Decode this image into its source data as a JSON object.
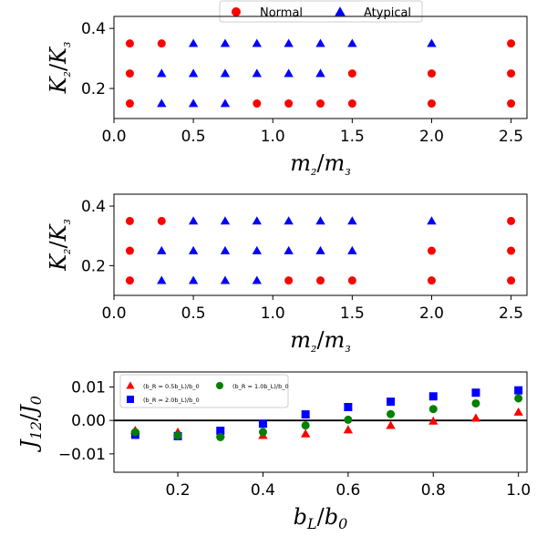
{
  "figure_legend": {
    "entries": [
      {
        "label": "Normal",
        "marker": "circle",
        "color": "#ff0000"
      },
      {
        "label": "Atypical",
        "marker": "triangle",
        "color": "#0000ff"
      }
    ]
  },
  "chart_data": [
    {
      "type": "scatter",
      "panel": "top",
      "xlabel": "m₂/m₃",
      "ylabel": "K₂/K₃",
      "xlim": [
        0.0,
        2.6
      ],
      "ylim": [
        0.1,
        0.44
      ],
      "xticks": [
        0.0,
        0.5,
        1.0,
        1.5,
        2.0,
        2.5
      ],
      "xtick_labels": [
        "0.0",
        "0.5",
        "1.0",
        "1.5",
        "2.0",
        "2.5"
      ],
      "yticks": [
        0.2,
        0.4
      ],
      "ytick_labels": [
        "0.2",
        "0.4"
      ],
      "series": [
        {
          "name": "Normal",
          "marker": "circle",
          "color": "#ff0000",
          "points": [
            [
              0.1,
              0.35
            ],
            [
              0.3,
              0.35
            ],
            [
              2.5,
              0.35
            ],
            [
              0.1,
              0.25
            ],
            [
              1.5,
              0.25
            ],
            [
              2.0,
              0.25
            ],
            [
              2.5,
              0.25
            ],
            [
              0.1,
              0.15
            ],
            [
              0.9,
              0.15
            ],
            [
              1.1,
              0.15
            ],
            [
              1.3,
              0.15
            ],
            [
              1.5,
              0.15
            ],
            [
              2.0,
              0.15
            ],
            [
              2.5,
              0.15
            ]
          ]
        },
        {
          "name": "Atypical",
          "marker": "triangle",
          "color": "#0000ff",
          "points": [
            [
              0.5,
              0.35
            ],
            [
              0.7,
              0.35
            ],
            [
              0.9,
              0.35
            ],
            [
              1.1,
              0.35
            ],
            [
              1.3,
              0.35
            ],
            [
              1.5,
              0.35
            ],
            [
              2.0,
              0.35
            ],
            [
              0.3,
              0.25
            ],
            [
              0.5,
              0.25
            ],
            [
              0.7,
              0.25
            ],
            [
              0.9,
              0.25
            ],
            [
              1.1,
              0.25
            ],
            [
              1.3,
              0.25
            ],
            [
              0.3,
              0.15
            ],
            [
              0.5,
              0.15
            ],
            [
              0.7,
              0.15
            ]
          ]
        }
      ]
    },
    {
      "type": "scatter",
      "panel": "middle",
      "xlabel": "m₂/m₃",
      "ylabel": "K₂/K₃",
      "xlim": [
        0.0,
        2.6
      ],
      "ylim": [
        0.1,
        0.44
      ],
      "xticks": [
        0.0,
        0.5,
        1.0,
        1.5,
        2.0,
        2.5
      ],
      "xtick_labels": [
        "0.0",
        "0.5",
        "1.0",
        "1.5",
        "2.0",
        "2.5"
      ],
      "yticks": [
        0.2,
        0.4
      ],
      "ytick_labels": [
        "0.2",
        "0.4"
      ],
      "series": [
        {
          "name": "Normal",
          "marker": "circle",
          "color": "#ff0000",
          "points": [
            [
              0.1,
              0.35
            ],
            [
              0.3,
              0.35
            ],
            [
              2.5,
              0.35
            ],
            [
              0.1,
              0.25
            ],
            [
              2.0,
              0.25
            ],
            [
              2.5,
              0.25
            ],
            [
              0.1,
              0.15
            ],
            [
              1.1,
              0.15
            ],
            [
              1.3,
              0.15
            ],
            [
              1.5,
              0.15
            ],
            [
              2.0,
              0.15
            ],
            [
              2.5,
              0.15
            ]
          ]
        },
        {
          "name": "Atypical",
          "marker": "triangle",
          "color": "#0000ff",
          "points": [
            [
              0.5,
              0.35
            ],
            [
              0.7,
              0.35
            ],
            [
              0.9,
              0.35
            ],
            [
              1.1,
              0.35
            ],
            [
              1.3,
              0.35
            ],
            [
              1.5,
              0.35
            ],
            [
              2.0,
              0.35
            ],
            [
              0.3,
              0.25
            ],
            [
              0.5,
              0.25
            ],
            [
              0.7,
              0.25
            ],
            [
              0.9,
              0.25
            ],
            [
              1.1,
              0.25
            ],
            [
              1.3,
              0.25
            ],
            [
              1.5,
              0.25
            ],
            [
              0.3,
              0.15
            ],
            [
              0.5,
              0.15
            ],
            [
              0.7,
              0.15
            ],
            [
              0.9,
              0.15
            ]
          ]
        }
      ]
    },
    {
      "type": "scatter",
      "panel": "bottom",
      "xlabel": "b_L/b_0",
      "ylabel": "J_12/J_0",
      "xlim": [
        0.05,
        1.02
      ],
      "ylim": [
        -0.0155,
        0.0145
      ],
      "xticks": [
        0.2,
        0.4,
        0.6,
        0.8,
        1.0
      ],
      "xtick_labels": [
        "0.2",
        "0.4",
        "0.6",
        "0.8",
        "1.0"
      ],
      "yticks": [
        -0.01,
        0.0,
        0.01
      ],
      "ytick_labels": [
        "−0.01",
        "0.00",
        "0.01"
      ],
      "hline": 0.0,
      "legend": {
        "location": "upper-left"
      },
      "series": [
        {
          "name": "(b_R = 0.5b_L)/b_0",
          "marker": "triangle",
          "color": "#ff0000",
          "x": [
            0.1,
            0.2,
            0.3,
            0.4,
            0.5,
            0.6,
            0.7,
            0.8,
            0.9,
            1.0
          ],
          "y": [
            -0.003,
            -0.0035,
            -0.004,
            -0.0045,
            -0.004,
            -0.0028,
            -0.0015,
            -0.0002,
            0.0007,
            0.0025
          ]
        },
        {
          "name": "(b_R = 2.0b_L)/b_0",
          "marker": "square",
          "color": "#0000ff",
          "x": [
            0.1,
            0.2,
            0.3,
            0.4,
            0.5,
            0.6,
            0.7,
            0.8,
            0.9,
            1.0
          ],
          "y": [
            -0.0043,
            -0.0047,
            -0.0031,
            -0.001,
            0.0018,
            0.004,
            0.0056,
            0.0072,
            0.0083,
            0.009
          ]
        },
        {
          "name": "(b_R = 1.0b_L)/b_0",
          "marker": "circle",
          "color": "#008000",
          "x": [
            0.1,
            0.2,
            0.3,
            0.4,
            0.5,
            0.6,
            0.7,
            0.8,
            0.9,
            1.0
          ],
          "y": [
            -0.0035,
            -0.0045,
            -0.005,
            -0.0035,
            -0.0015,
            0.0002,
            0.0019,
            0.0034,
            0.0051,
            0.0066
          ]
        }
      ]
    }
  ]
}
